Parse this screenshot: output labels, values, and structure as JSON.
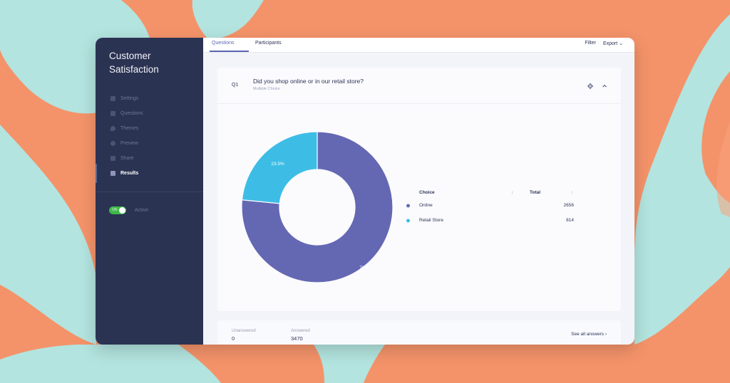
{
  "sidebar": {
    "title": "Customer Satisfaction",
    "items": [
      {
        "label": "Settings",
        "icon": "settings-icon"
      },
      {
        "label": "Questions",
        "icon": "questions-icon"
      },
      {
        "label": "Themes",
        "icon": "themes-icon"
      },
      {
        "label": "Preview",
        "icon": "preview-icon"
      },
      {
        "label": "Share",
        "icon": "share-icon"
      },
      {
        "label": "Results",
        "icon": "results-icon",
        "active": true
      }
    ],
    "toggle": {
      "label": "ON",
      "text": "Active",
      "on": true
    }
  },
  "tabs": [
    {
      "label": "Questions",
      "active": true
    },
    {
      "label": "Participants",
      "active": false
    }
  ],
  "top_actions": {
    "filter": "Filter",
    "export": "Export ⌄"
  },
  "question": {
    "number": "Q1",
    "title": "Did you shop online or in our retail store?",
    "subtitle": "Multiple Choice"
  },
  "chart_data": {
    "type": "pie",
    "donut": true,
    "categories": [
      "Online",
      "Retail Store"
    ],
    "values": [
      2656,
      814
    ],
    "slice_labels": [
      "76.5%",
      "23.5%"
    ],
    "colors": [
      "#6468b3",
      "#3dbde6"
    ]
  },
  "table": {
    "headers": {
      "choice": "Choice",
      "total": "Total",
      "sort": "↕"
    },
    "rows": [
      {
        "choice": "Online",
        "total": "2656"
      },
      {
        "choice": "Retail Store",
        "total": "814"
      }
    ]
  },
  "footer": {
    "unanswered_label": "Unanswered",
    "unanswered_value": "0",
    "answered_label": "Answered",
    "answered_value": "3470",
    "see_all": "See all answers ›"
  },
  "colors": {
    "sidebar": "#2b3353",
    "accent": "#5d66b0",
    "background_orange": "#f4936a",
    "background_teal": "#b3e4df",
    "toggle_green": "#3fb84b"
  }
}
